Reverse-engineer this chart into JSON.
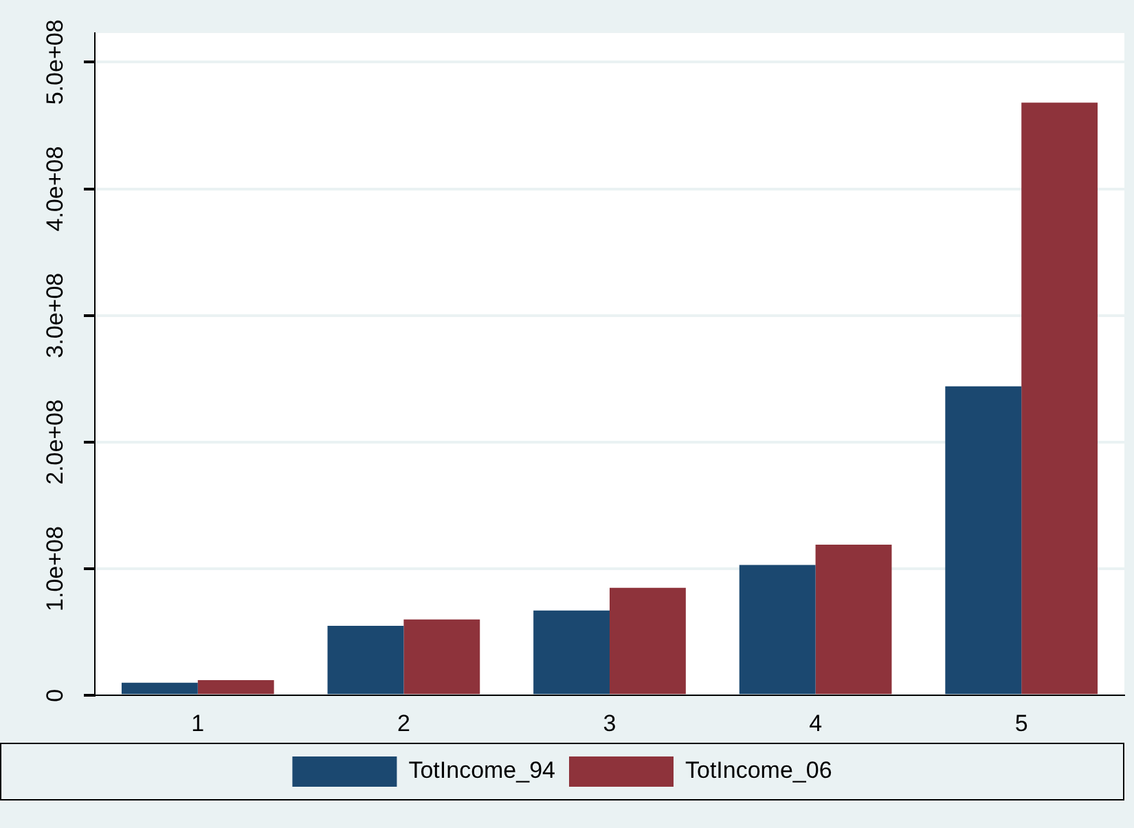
{
  "chart_data": {
    "type": "bar",
    "categories": [
      "1",
      "2",
      "3",
      "4",
      "5"
    ],
    "series": [
      {
        "name": "TotIncome_94",
        "color": "#1b4870",
        "values": [
          10000000,
          55000000,
          67000000,
          103000000,
          244000000
        ]
      },
      {
        "name": "TotIncome_06",
        "color": "#8e333b",
        "values": [
          12000000,
          60000000,
          85000000,
          119000000,
          468000000
        ]
      }
    ],
    "ylim": [
      0,
      523000000
    ],
    "yticks": [
      0,
      {
        "value": 100000000,
        "label": "1.0e+08"
      },
      {
        "value": 200000000,
        "label": "2.0e+08"
      },
      {
        "value": 300000000,
        "label": "3.0e+08"
      },
      {
        "value": 400000000,
        "label": "4.0e+08"
      },
      {
        "value": 500000000,
        "label": "5.0e+08"
      }
    ],
    "grid": "y",
    "legend": "bottom"
  }
}
